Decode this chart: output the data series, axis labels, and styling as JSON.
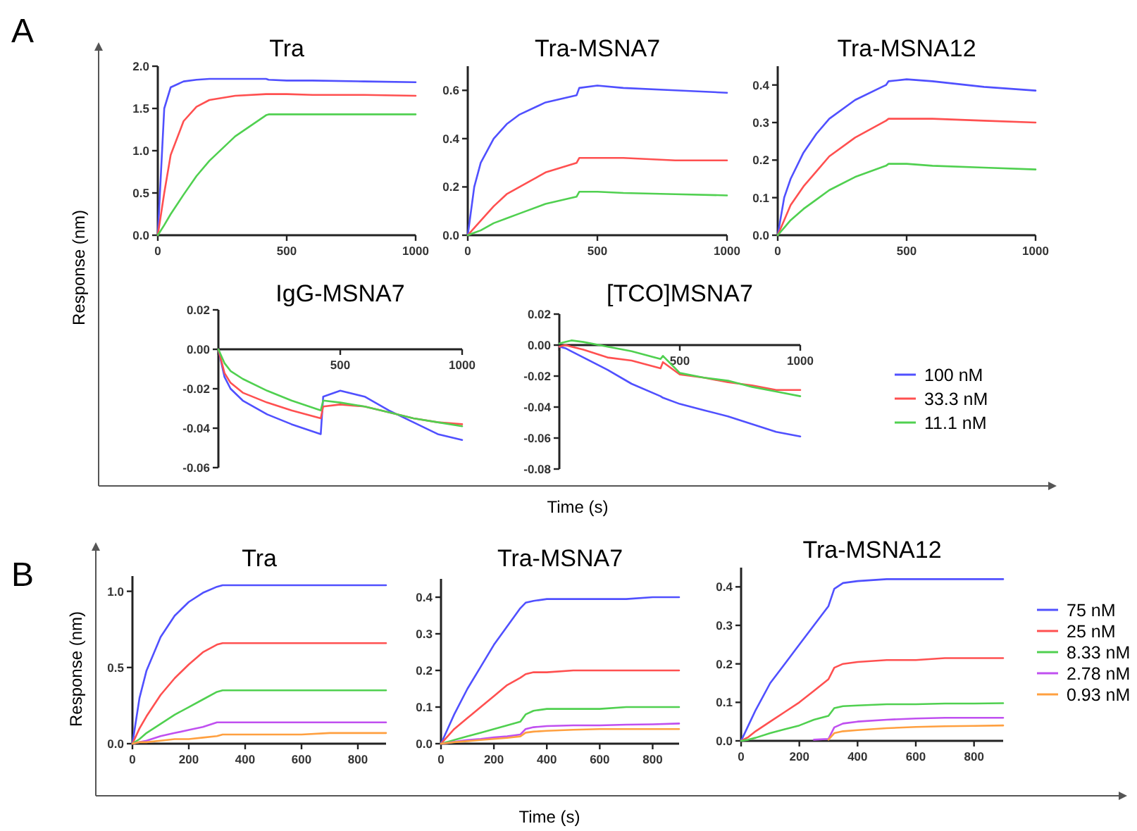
{
  "chart_data": [
    {
      "type": "line",
      "title": "Tra",
      "ylabel": "Response (nm)",
      "annotations": [
        "A"
      ],
      "xlim": [
        0,
        1000
      ],
      "xticks": [
        0,
        500,
        1000
      ],
      "ylim": [
        0,
        2
      ],
      "yticks": [
        {
          "value": 0,
          "label": "0.0"
        },
        {
          "value": 0.5,
          "label": "0.5"
        },
        {
          "value": 1,
          "label": "1.0"
        },
        {
          "value": 1.5,
          "label": "1.5"
        },
        {
          "value": 2,
          "label": "2.0"
        }
      ],
      "x": [
        0,
        25,
        50,
        100,
        150,
        200,
        300,
        420,
        430,
        500,
        600,
        800,
        1000
      ],
      "series": [
        {
          "color": "#5050ff",
          "values": [
            0,
            1.5,
            1.75,
            1.82,
            1.84,
            1.85,
            1.85,
            1.85,
            1.84,
            1.83,
            1.83,
            1.82,
            1.81
          ]
        },
        {
          "color": "#ff5050",
          "values": [
            0,
            0.5,
            0.95,
            1.35,
            1.52,
            1.6,
            1.65,
            1.67,
            1.67,
            1.67,
            1.66,
            1.66,
            1.65
          ]
        },
        {
          "color": "#50d050",
          "values": [
            0,
            0.12,
            0.25,
            0.48,
            0.7,
            0.88,
            1.17,
            1.42,
            1.43,
            1.43,
            1.43,
            1.43,
            1.43
          ]
        }
      ]
    },
    {
      "type": "line",
      "title": "Tra-MSNA7",
      "xlabel": "Time (s)",
      "xlim": [
        0,
        1000
      ],
      "xticks": [
        0,
        500,
        1000
      ],
      "ylim": [
        0,
        0.7
      ],
      "yticks": [
        {
          "value": 0,
          "label": "0.0"
        },
        {
          "value": 0.2,
          "label": "0.2"
        },
        {
          "value": 0.4,
          "label": "0.4"
        },
        {
          "value": 0.6,
          "label": "0.6"
        }
      ],
      "x": [
        0,
        25,
        50,
        100,
        150,
        200,
        300,
        420,
        430,
        500,
        600,
        800,
        1000
      ],
      "series": [
        {
          "color": "#5050ff",
          "values": [
            0,
            0.2,
            0.3,
            0.4,
            0.46,
            0.5,
            0.55,
            0.58,
            0.61,
            0.62,
            0.61,
            0.6,
            0.59
          ]
        },
        {
          "color": "#ff5050",
          "values": [
            0,
            0.03,
            0.06,
            0.12,
            0.17,
            0.2,
            0.26,
            0.3,
            0.32,
            0.32,
            0.32,
            0.31,
            0.31
          ]
        },
        {
          "color": "#50d050",
          "values": [
            0,
            0.01,
            0.02,
            0.05,
            0.07,
            0.09,
            0.13,
            0.16,
            0.18,
            0.18,
            0.175,
            0.17,
            0.165
          ]
        }
      ]
    },
    {
      "type": "line",
      "title": "Tra-MSNA12",
      "xlim": [
        0,
        1000
      ],
      "xticks": [
        0,
        500,
        1000
      ],
      "ylim": [
        0,
        0.45
      ],
      "yticks": [
        {
          "value": 0,
          "label": "0.0"
        },
        {
          "value": 0.1,
          "label": "0.1"
        },
        {
          "value": 0.2,
          "label": "0.2"
        },
        {
          "value": 0.3,
          "label": "0.3"
        },
        {
          "value": 0.4,
          "label": "0.4"
        }
      ],
      "x": [
        0,
        25,
        50,
        100,
        150,
        200,
        300,
        420,
        430,
        500,
        600,
        800,
        1000
      ],
      "series": [
        {
          "color": "#5050ff",
          "values": [
            0,
            0.1,
            0.15,
            0.22,
            0.27,
            0.31,
            0.36,
            0.4,
            0.41,
            0.415,
            0.41,
            0.395,
            0.385
          ]
        },
        {
          "color": "#ff5050",
          "values": [
            0,
            0.04,
            0.08,
            0.13,
            0.17,
            0.21,
            0.26,
            0.305,
            0.31,
            0.31,
            0.31,
            0.305,
            0.3
          ]
        },
        {
          "color": "#50d050",
          "values": [
            0,
            0.02,
            0.04,
            0.07,
            0.095,
            0.12,
            0.155,
            0.185,
            0.19,
            0.19,
            0.185,
            0.18,
            0.175
          ]
        }
      ]
    },
    {
      "type": "line",
      "title": "IgG-MSNA7",
      "xlim": [
        0,
        1000
      ],
      "xticks": [
        {
          "value": 0,
          "label": null
        },
        500,
        1000
      ],
      "ylim": [
        -0.06,
        0.02
      ],
      "yticks": [
        {
          "value": 0.02,
          "label": "0.02"
        },
        {
          "value": 0,
          "label": "0.00"
        },
        {
          "value": -0.02,
          "label": "-0.02"
        },
        {
          "value": -0.04,
          "label": "-0.04"
        },
        {
          "value": -0.06,
          "label": "-0.06"
        }
      ],
      "x": [
        0,
        25,
        50,
        100,
        200,
        300,
        420,
        430,
        500,
        600,
        700,
        800,
        900,
        1000
      ],
      "series": [
        {
          "color": "#5050ff",
          "values": [
            0,
            -0.014,
            -0.02,
            -0.026,
            -0.033,
            -0.038,
            -0.043,
            -0.024,
            -0.021,
            -0.024,
            -0.031,
            -0.037,
            -0.043,
            -0.046
          ]
        },
        {
          "color": "#ff5050",
          "values": [
            0,
            -0.012,
            -0.017,
            -0.022,
            -0.027,
            -0.031,
            -0.035,
            -0.029,
            -0.028,
            -0.029,
            -0.032,
            -0.035,
            -0.037,
            -0.038
          ]
        },
        {
          "color": "#50d050",
          "values": [
            0,
            -0.007,
            -0.011,
            -0.015,
            -0.021,
            -0.026,
            -0.031,
            -0.026,
            -0.027,
            -0.029,
            -0.032,
            -0.035,
            -0.037,
            -0.039
          ]
        }
      ]
    },
    {
      "type": "line",
      "title": "[TCO]MSNA7",
      "legend": "right",
      "xlim": [
        0,
        1000
      ],
      "xticks": [
        {
          "value": 0,
          "label": null
        },
        500,
        1000
      ],
      "ylim": [
        -0.08,
        0.02
      ],
      "yticks": [
        {
          "value": 0.02,
          "label": "0.02"
        },
        {
          "value": 0,
          "label": "0.00"
        },
        {
          "value": -0.02,
          "label": "-0.02"
        },
        {
          "value": -0.04,
          "label": "-0.04"
        },
        {
          "value": -0.06,
          "label": "-0.06"
        },
        {
          "value": -0.08,
          "label": "-0.08"
        }
      ],
      "x": [
        0,
        25,
        50,
        100,
        200,
        300,
        420,
        430,
        500,
        600,
        700,
        800,
        900,
        1000
      ],
      "series": [
        {
          "name": "100 nM",
          "color": "#5050ff",
          "values": [
            -0.001,
            -0.002,
            -0.004,
            -0.008,
            -0.016,
            -0.025,
            -0.033,
            -0.034,
            -0.038,
            -0.042,
            -0.046,
            -0.051,
            -0.056,
            -0.059
          ]
        },
        {
          "name": "33.3 nM",
          "color": "#ff5050",
          "values": [
            -0.001,
            0,
            -0.001,
            -0.003,
            -0.008,
            -0.01,
            -0.015,
            -0.011,
            -0.019,
            -0.021,
            -0.024,
            -0.026,
            -0.029,
            -0.029
          ]
        },
        {
          "name": "11.1 nM",
          "color": "#50d050",
          "values": [
            0.001,
            0.002,
            0.003,
            0.002,
            -0.001,
            -0.004,
            -0.009,
            -0.007,
            -0.018,
            -0.021,
            -0.023,
            -0.027,
            -0.03,
            -0.033
          ]
        }
      ]
    },
    {
      "type": "line",
      "title": "Tra",
      "ylabel": "Response (nm)",
      "annotations": [
        "B"
      ],
      "xlim": [
        0,
        900
      ],
      "xticks": [
        0,
        200,
        400,
        600,
        800
      ],
      "ylim": [
        0,
        1.1
      ],
      "yticks": [
        {
          "value": 0,
          "label": "0.0"
        },
        {
          "value": 0.5,
          "label": "0.5"
        },
        {
          "value": 1,
          "label": "1.0"
        }
      ],
      "x": [
        0,
        25,
        50,
        100,
        150,
        200,
        250,
        300,
        320,
        350,
        400,
        500,
        600,
        700,
        800,
        900
      ],
      "series": [
        {
          "color": "#5050ff",
          "values": [
            0,
            0.3,
            0.48,
            0.7,
            0.84,
            0.93,
            0.99,
            1.03,
            1.04,
            1.04,
            1.04,
            1.04,
            1.04,
            1.04,
            1.04,
            1.04
          ]
        },
        {
          "color": "#ff5050",
          "values": [
            0,
            0.1,
            0.18,
            0.32,
            0.43,
            0.52,
            0.6,
            0.65,
            0.66,
            0.66,
            0.66,
            0.66,
            0.66,
            0.66,
            0.66,
            0.66
          ]
        },
        {
          "color": "#50d050",
          "values": [
            0,
            0.03,
            0.07,
            0.13,
            0.19,
            0.24,
            0.29,
            0.34,
            0.35,
            0.35,
            0.35,
            0.35,
            0.35,
            0.35,
            0.35,
            0.35
          ]
        },
        {
          "color": "#c050f0",
          "values": [
            0,
            0.01,
            0.02,
            0.05,
            0.07,
            0.09,
            0.11,
            0.14,
            0.14,
            0.14,
            0.14,
            0.14,
            0.14,
            0.14,
            0.14,
            0.14
          ]
        },
        {
          "color": "#ffa040",
          "values": [
            0,
            0.01,
            0.01,
            0.02,
            0.03,
            0.03,
            0.04,
            0.05,
            0.06,
            0.06,
            0.06,
            0.06,
            0.06,
            0.07,
            0.07,
            0.07
          ]
        }
      ]
    },
    {
      "type": "line",
      "title": "Tra-MSNA7",
      "xlabel": "Time (s)",
      "xlim": [
        0,
        900
      ],
      "xticks": [
        0,
        200,
        400,
        600,
        800
      ],
      "ylim": [
        0,
        0.45
      ],
      "yticks": [
        {
          "value": 0,
          "label": "0.0"
        },
        {
          "value": 0.1,
          "label": "0.1"
        },
        {
          "value": 0.2,
          "label": "0.2"
        },
        {
          "value": 0.3,
          "label": "0.3"
        },
        {
          "value": 0.4,
          "label": "0.4"
        }
      ],
      "x": [
        0,
        25,
        50,
        100,
        150,
        200,
        250,
        300,
        320,
        350,
        400,
        500,
        600,
        700,
        800,
        900
      ],
      "series": [
        {
          "color": "#5050ff",
          "values": [
            0,
            0.04,
            0.08,
            0.15,
            0.21,
            0.27,
            0.32,
            0.37,
            0.385,
            0.39,
            0.395,
            0.395,
            0.395,
            0.395,
            0.4,
            0.4
          ]
        },
        {
          "color": "#ff5050",
          "values": [
            0,
            0.02,
            0.04,
            0.07,
            0.1,
            0.13,
            0.16,
            0.18,
            0.19,
            0.195,
            0.195,
            0.2,
            0.2,
            0.2,
            0.2,
            0.2
          ]
        },
        {
          "color": "#50d050",
          "values": [
            0,
            0.005,
            0.01,
            0.02,
            0.03,
            0.04,
            0.05,
            0.06,
            0.08,
            0.09,
            0.095,
            0.095,
            0.095,
            0.1,
            0.1,
            0.1
          ]
        },
        {
          "color": "#c050f0",
          "values": [
            0,
            0.002,
            0.005,
            0.01,
            0.013,
            0.017,
            0.02,
            0.025,
            0.04,
            0.045,
            0.048,
            0.05,
            0.05,
            0.052,
            0.053,
            0.055
          ]
        },
        {
          "color": "#ffa040",
          "values": [
            0,
            0.002,
            0.004,
            0.007,
            0.01,
            0.013,
            0.016,
            0.02,
            0.03,
            0.033,
            0.035,
            0.038,
            0.04,
            0.04,
            0.04,
            0.04
          ]
        }
      ]
    },
    {
      "type": "line",
      "title": "Tra-MSNA12",
      "legend": "right",
      "xlim": [
        0,
        900
      ],
      "xticks": [
        0,
        200,
        400,
        600,
        800
      ],
      "ylim": [
        0,
        0.45
      ],
      "yticks": [
        {
          "value": 0,
          "label": "0.0"
        },
        {
          "value": 0.1,
          "label": "0.1"
        },
        {
          "value": 0.2,
          "label": "0.2"
        },
        {
          "value": 0.3,
          "label": "0.3"
        },
        {
          "value": 0.4,
          "label": "0.4"
        }
      ],
      "x": [
        0,
        25,
        50,
        100,
        150,
        200,
        250,
        300,
        320,
        350,
        400,
        500,
        600,
        700,
        800,
        900
      ],
      "series": [
        {
          "name": "75 nM",
          "color": "#5050ff",
          "values": [
            0,
            0.04,
            0.08,
            0.15,
            0.2,
            0.25,
            0.3,
            0.35,
            0.395,
            0.41,
            0.415,
            0.42,
            0.42,
            0.42,
            0.42,
            0.42
          ]
        },
        {
          "name": "25 nM",
          "color": "#ff5050",
          "values": [
            0,
            0.01,
            0.025,
            0.05,
            0.075,
            0.1,
            0.13,
            0.16,
            0.19,
            0.2,
            0.205,
            0.21,
            0.21,
            0.215,
            0.215,
            0.215
          ]
        },
        {
          "name": "8.33 nM",
          "color": "#50d050",
          "values": [
            0,
            0.003,
            0.008,
            0.02,
            0.03,
            0.04,
            0.055,
            0.065,
            0.085,
            0.09,
            0.092,
            0.095,
            0.095,
            0.097,
            0.097,
            0.098
          ]
        },
        {
          "name": "2.78 nM",
          "color": "#c050f0",
          "values": [
            null,
            null,
            null,
            null,
            null,
            null,
            0.003,
            0.005,
            0.035,
            0.045,
            0.05,
            0.055,
            0.058,
            0.06,
            0.06,
            0.06
          ]
        },
        {
          "name": "0.93 nM",
          "color": "#ffa040",
          "values": [
            null,
            null,
            null,
            null,
            null,
            null,
            null,
            0.003,
            0.02,
            0.025,
            0.028,
            0.033,
            0.036,
            0.038,
            0.039,
            0.04
          ]
        }
      ]
    }
  ]
}
